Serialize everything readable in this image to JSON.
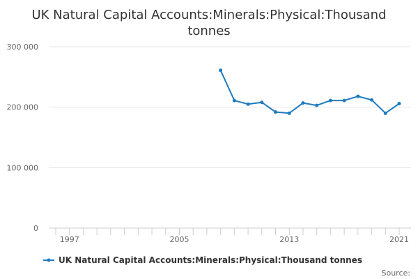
{
  "chart_data": {
    "type": "line",
    "title_line1": "UK Natural Capital Accounts:Minerals:Physical:Thousand",
    "title_line2": "tonnes",
    "xlabel": "",
    "ylabel": "",
    "xlim": [
      1996,
      2021
    ],
    "ylim": [
      0,
      300000
    ],
    "y_ticks": [
      {
        "value": 0,
        "label": "0"
      },
      {
        "value": 100000,
        "label": "100 000"
      },
      {
        "value": 200000,
        "label": "200 000"
      },
      {
        "value": 300000,
        "label": "300 000"
      }
    ],
    "x_ticks": [
      {
        "value": 1997,
        "label": "1997"
      },
      {
        "value": 2005,
        "label": "2005"
      },
      {
        "value": 2013,
        "label": "2013"
      },
      {
        "value": 2021,
        "label": "2021"
      }
    ],
    "x_minor_ticks": [
      1996,
      1997,
      1998,
      1999,
      2000,
      2001,
      2002,
      2003,
      2004,
      2005,
      2006,
      2007,
      2008,
      2009,
      2010,
      2011,
      2012,
      2013,
      2014,
      2015,
      2016,
      2017,
      2018,
      2019,
      2020,
      2021
    ],
    "grid": true,
    "legend_position": "bottom",
    "series": [
      {
        "name": "UK Natural Capital Accounts:Minerals:Physical:Thousand tonnes",
        "color": "#1f7bbf",
        "x": [
          2008,
          2009,
          2010,
          2011,
          2012,
          2013,
          2014,
          2015,
          2016,
          2017,
          2018,
          2019,
          2020,
          2021
        ],
        "values": [
          261000,
          211000,
          205000,
          208000,
          192000,
          190000,
          207000,
          203000,
          211000,
          211000,
          218000,
          212000,
          190000,
          206000
        ]
      }
    ]
  },
  "footer": {
    "source_label": "Source:"
  }
}
